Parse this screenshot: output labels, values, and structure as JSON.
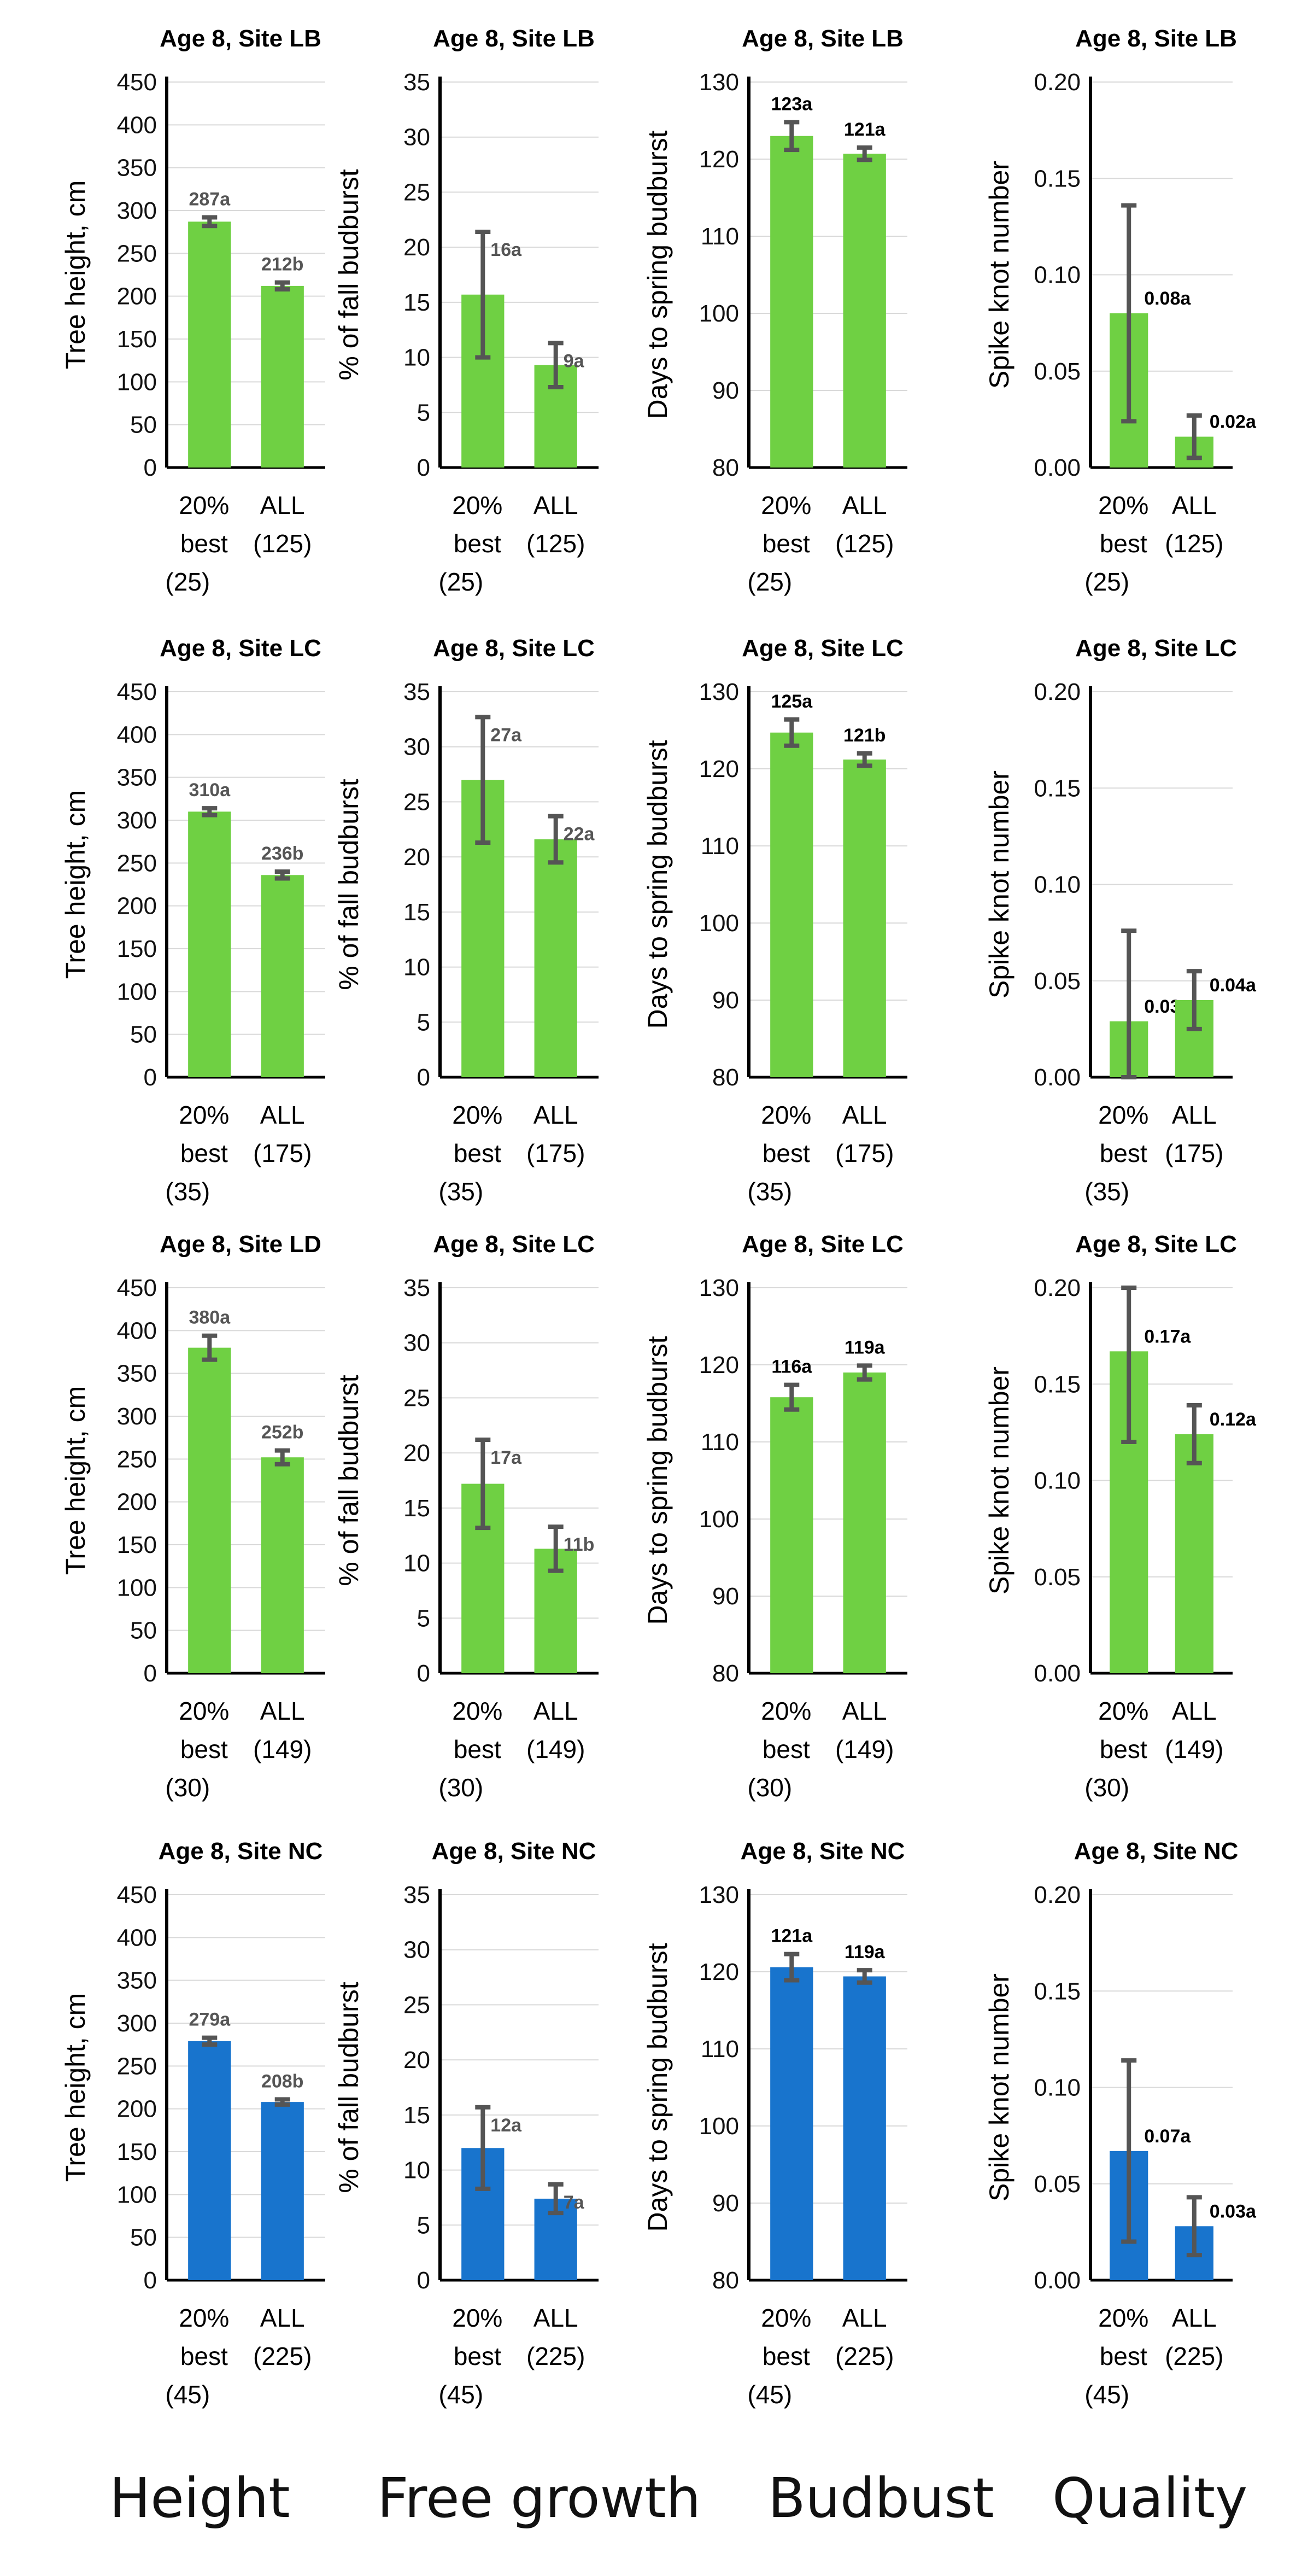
{
  "figure": {
    "footer_labels": [
      "Height",
      "Free growth",
      "Budbust",
      "Quality"
    ]
  },
  "colors": {
    "green": "#6fd043",
    "blue": "#1874cd",
    "error_bar": "#555555",
    "axis": "#000000",
    "grid": "#d9d9d9",
    "value_label": "#555555"
  },
  "chart_data": [
    {
      "type": "bar",
      "row": 0,
      "col": 0,
      "title": "Age 8, Site LB",
      "ylabel": "Tree height, cm",
      "ylim": [
        0,
        450
      ],
      "ytick_step": 50,
      "ytick_decimals": 0,
      "color": "green",
      "label_color": "grey",
      "categories": [
        "20%\nbest\n(25)",
        "ALL\n(125)"
      ],
      "values": [
        287,
        212
      ],
      "errors": [
        5,
        4
      ],
      "labels": [
        "287a",
        "212b"
      ]
    },
    {
      "type": "bar",
      "row": 0,
      "col": 1,
      "title": "Age 8, Site LB",
      "ylabel": "% of fall budburst",
      "ylim": [
        0,
        35
      ],
      "ytick_step": 5,
      "ytick_decimals": 0,
      "color": "green",
      "label_color": "grey",
      "categories": [
        "20%\nbest\n(25)",
        "ALL\n(125)"
      ],
      "values": [
        15.7,
        9.3
      ],
      "errors": [
        5.7,
        2
      ],
      "labels": [
        "16a",
        "9a"
      ]
    },
    {
      "type": "bar",
      "row": 0,
      "col": 2,
      "title": "Age 8, Site LB",
      "ylabel": "Days to spring budburst",
      "ylim": [
        80,
        130
      ],
      "ytick_step": 10,
      "ytick_decimals": 0,
      "color": "green",
      "label_color": "black",
      "categories": [
        "20%\nbest\n(25)",
        "ALL\n(125)"
      ],
      "values": [
        123,
        120.7
      ],
      "errors": [
        1.8,
        0.8
      ],
      "labels": [
        "123a",
        "121a"
      ]
    },
    {
      "type": "bar",
      "row": 0,
      "col": 3,
      "title": "Age 8, Site LB",
      "ylabel": "Spike knot number",
      "ylim": [
        0,
        0.2
      ],
      "ytick_step": 0.05,
      "ytick_decimals": 2,
      "color": "green",
      "label_color": "black",
      "categories": [
        "20%\nbest\n(25)",
        "ALL\n(125)"
      ],
      "values": [
        0.08,
        0.016
      ],
      "errors": [
        0.056,
        0.011
      ],
      "labels": [
        "0.08a",
        "0.02a"
      ]
    },
    {
      "type": "bar",
      "row": 1,
      "col": 0,
      "title": "Age 8, Site LC",
      "ylabel": "Tree height, cm",
      "ylim": [
        0,
        450
      ],
      "ytick_step": 50,
      "ytick_decimals": 0,
      "color": "green",
      "label_color": "grey",
      "categories": [
        "20%\nbest\n(35)",
        "ALL\n(175)"
      ],
      "values": [
        310,
        236
      ],
      "errors": [
        4,
        4
      ],
      "labels": [
        "310a",
        "236b"
      ]
    },
    {
      "type": "bar",
      "row": 1,
      "col": 1,
      "title": "Age 8, Site LC",
      "ylabel": "% of fall budburst",
      "ylim": [
        0,
        35
      ],
      "ytick_step": 5,
      "ytick_decimals": 0,
      "color": "green",
      "label_color": "grey",
      "categories": [
        "20%\nbest\n(35)",
        "ALL\n(175)"
      ],
      "values": [
        27,
        21.6
      ],
      "errors": [
        5.7,
        2.1
      ],
      "labels": [
        "27a",
        "22a"
      ]
    },
    {
      "type": "bar",
      "row": 1,
      "col": 2,
      "title": "Age 8, Site LC",
      "ylabel": "Days to spring budburst",
      "ylim": [
        80,
        130
      ],
      "ytick_step": 10,
      "ytick_decimals": 0,
      "color": "green",
      "label_color": "black",
      "categories": [
        "20%\nbest\n(35)",
        "ALL\n(175)"
      ],
      "values": [
        124.7,
        121.2
      ],
      "errors": [
        1.7,
        0.8
      ],
      "labels": [
        "125a",
        "121b"
      ]
    },
    {
      "type": "bar",
      "row": 1,
      "col": 3,
      "title": "Age 8, Site LC",
      "ylabel": "Spike knot number",
      "ylim": [
        0,
        0.2
      ],
      "ytick_step": 0.05,
      "ytick_decimals": 2,
      "color": "green",
      "label_color": "black",
      "categories": [
        "20%\nbest\n(35)",
        "ALL\n(175)"
      ],
      "values": [
        0.029,
        0.04
      ],
      "errors": [
        0.047,
        0.015
      ],
      "labels": [
        "0.03a",
        "0.04a"
      ]
    },
    {
      "type": "bar",
      "row": 2,
      "col": 0,
      "title": "Age 8, Site LD",
      "ylabel": "Tree height, cm",
      "ylim": [
        0,
        450
      ],
      "ytick_step": 50,
      "ytick_decimals": 0,
      "color": "green",
      "label_color": "grey",
      "categories": [
        "20%\nbest\n(30)",
        "ALL\n(149)"
      ],
      "values": [
        380,
        252
      ],
      "errors": [
        14,
        8
      ],
      "labels": [
        "380a",
        "252b"
      ]
    },
    {
      "type": "bar",
      "row": 2,
      "col": 1,
      "title": "Age 8, Site LC",
      "ylabel": "% of fall budburst",
      "ylim": [
        0,
        35
      ],
      "ytick_step": 5,
      "ytick_decimals": 0,
      "color": "green",
      "label_color": "grey",
      "categories": [
        "20%\nbest\n(30)",
        "ALL\n(149)"
      ],
      "values": [
        17.2,
        11.3
      ],
      "errors": [
        4,
        2
      ],
      "labels": [
        "17a",
        "11b"
      ]
    },
    {
      "type": "bar",
      "row": 2,
      "col": 2,
      "title": "Age 8, Site LC",
      "ylabel": "Days to spring budburst",
      "ylim": [
        80,
        130
      ],
      "ytick_step": 10,
      "ytick_decimals": 0,
      "color": "green",
      "label_color": "black",
      "categories": [
        "20%\nbest\n(30)",
        "ALL\n(149)"
      ],
      "values": [
        115.8,
        119
      ],
      "errors": [
        1.6,
        0.9
      ],
      "labels": [
        "116a",
        "119a"
      ]
    },
    {
      "type": "bar",
      "row": 2,
      "col": 3,
      "title": "Age 8, Site LC",
      "ylabel": "Spike knot number",
      "ylim": [
        0,
        0.2
      ],
      "ytick_step": 0.05,
      "ytick_decimals": 2,
      "color": "green",
      "label_color": "black",
      "categories": [
        "20%\nbest\n(30)",
        "ALL\n(149)"
      ],
      "values": [
        0.167,
        0.124
      ],
      "errors": [
        0.047,
        0.015
      ],
      "labels": [
        "0.17a",
        "0.12a"
      ]
    },
    {
      "type": "bar",
      "row": 3,
      "col": 0,
      "title": "Age 8, Site NC",
      "ylabel": "Tree height, cm",
      "ylim": [
        0,
        450
      ],
      "ytick_step": 50,
      "ytick_decimals": 0,
      "color": "blue",
      "label_color": "grey",
      "categories": [
        "20%\nbest\n(45)",
        "ALL\n(225)"
      ],
      "values": [
        279,
        208
      ],
      "errors": [
        4,
        3
      ],
      "labels": [
        "279a",
        "208b"
      ]
    },
    {
      "type": "bar",
      "row": 3,
      "col": 1,
      "title": "Age 8, Site NC",
      "ylabel": "% of fall budburst",
      "ylim": [
        0,
        35
      ],
      "ytick_step": 5,
      "ytick_decimals": 0,
      "color": "blue",
      "label_color": "grey",
      "categories": [
        "20%\nbest\n(45)",
        "ALL\n(225)"
      ],
      "values": [
        12,
        7.4
      ],
      "errors": [
        3.7,
        1.3
      ],
      "labels": [
        "12a",
        "7a"
      ]
    },
    {
      "type": "bar",
      "row": 3,
      "col": 2,
      "title": "Age 8, Site NC",
      "ylabel": "Days to spring budburst",
      "ylim": [
        80,
        130
      ],
      "ytick_step": 10,
      "ytick_decimals": 0,
      "color": "blue",
      "label_color": "black",
      "categories": [
        "20%\nbest\n(45)",
        "ALL\n(225)"
      ],
      "values": [
        120.6,
        119.4
      ],
      "errors": [
        1.7,
        0.8
      ],
      "labels": [
        "121a",
        "119a"
      ]
    },
    {
      "type": "bar",
      "row": 3,
      "col": 3,
      "title": "Age 8, Site NC",
      "ylabel": "Spike knot number",
      "ylim": [
        0,
        0.2
      ],
      "ytick_step": 0.05,
      "ytick_decimals": 2,
      "color": "blue",
      "label_color": "black",
      "categories": [
        "20%\nbest\n(45)",
        "ALL\n(225)"
      ],
      "values": [
        0.067,
        0.028
      ],
      "errors": [
        0.047,
        0.015
      ],
      "labels": [
        "0.07a",
        "0.03a"
      ]
    }
  ]
}
